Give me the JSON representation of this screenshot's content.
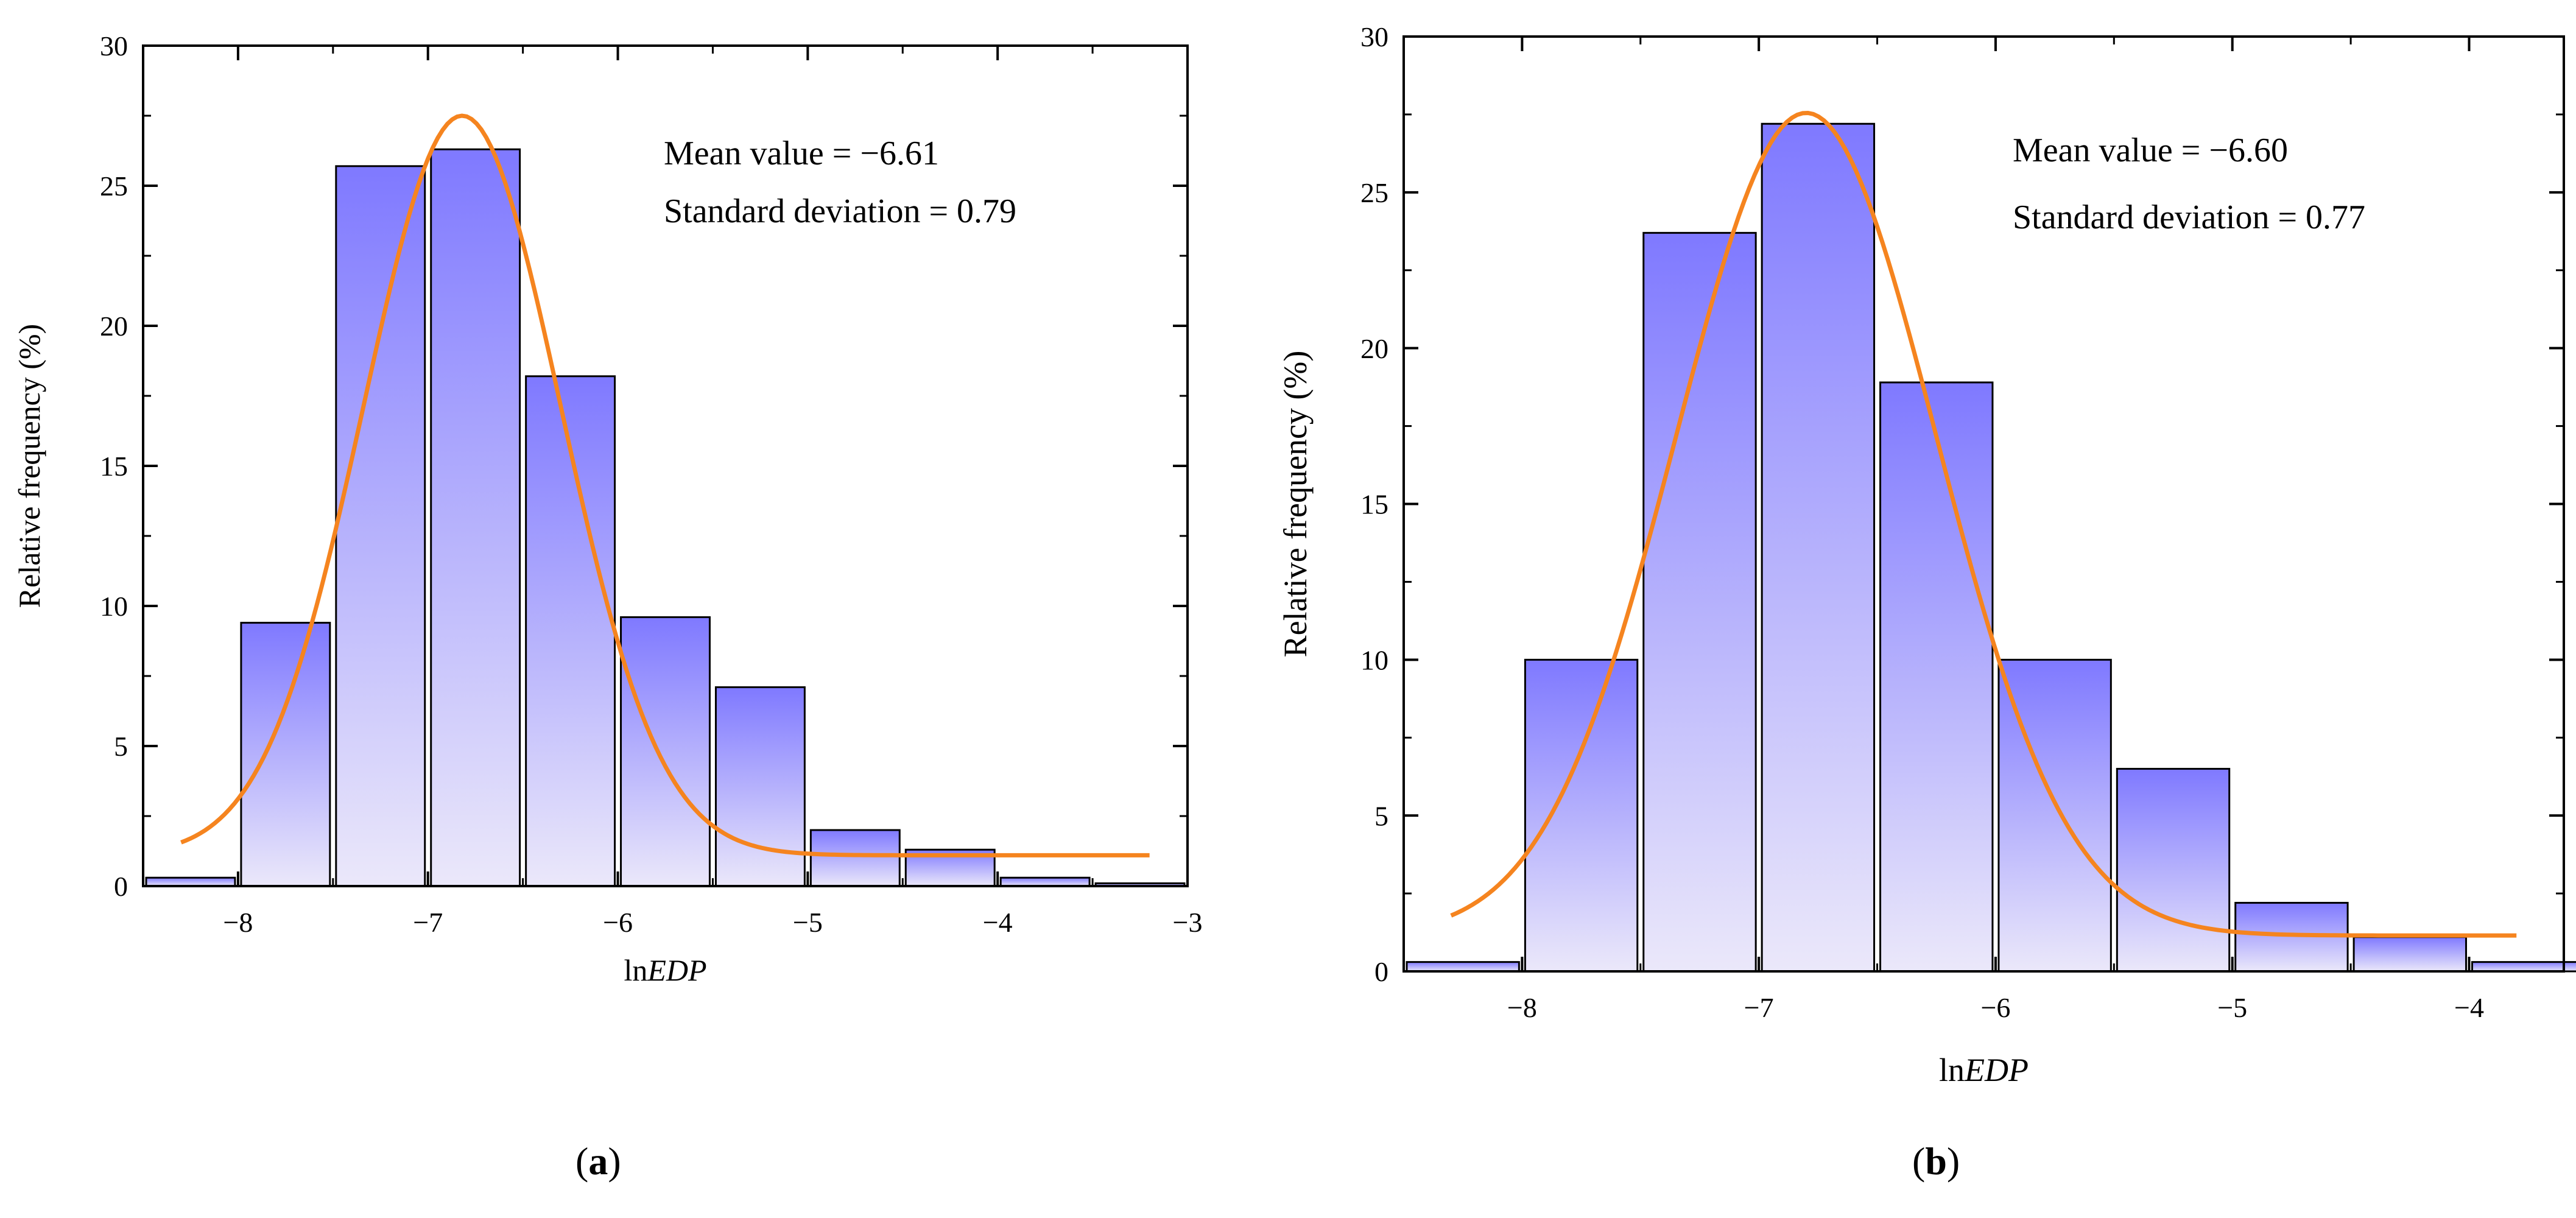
{
  "chart_data": [
    {
      "type": "bar",
      "panel_label": "a",
      "xlabel_prefix": "ln",
      "xlabel_italic": "EDP",
      "ylabel": "Relative frequency (%)",
      "xlim": [
        -8.5,
        -3.0
      ],
      "ylim": [
        0,
        30
      ],
      "xticks": [
        -8,
        -7,
        -6,
        -5,
        -4,
        -3
      ],
      "yticks": [
        0,
        5,
        10,
        15,
        20,
        25,
        30
      ],
      "bin_width": 0.5,
      "bins": [
        {
          "x0": -8.5,
          "value": 0.3
        },
        {
          "x0": -8.0,
          "value": 9.4
        },
        {
          "x0": -7.5,
          "value": 25.7
        },
        {
          "x0": -7.0,
          "value": 26.3
        },
        {
          "x0": -6.5,
          "value": 18.2
        },
        {
          "x0": -6.0,
          "value": 9.6
        },
        {
          "x0": -5.5,
          "value": 7.1
        },
        {
          "x0": -5.0,
          "value": 2.0
        },
        {
          "x0": -4.5,
          "value": 1.3
        },
        {
          "x0": -4.0,
          "value": 0.3
        },
        {
          "x0": -3.5,
          "value": 0.1
        }
      ],
      "fit": {
        "mu": -6.82,
        "sigma": 0.52,
        "amplitude": 26.4,
        "offset": 1.1,
        "x_start": -8.3,
        "x_end": -3.2
      },
      "annotations": [
        "Mean value = −6.61",
        "Standard deviation = 0.79"
      ],
      "colors": {
        "bar_top": "#7f79ff",
        "bar_bottom": "#ebe8fa",
        "fit": "#f5841f",
        "frame": "#000000"
      }
    },
    {
      "type": "bar",
      "panel_label": "b",
      "xlabel_prefix": "ln",
      "xlabel_italic": "EDP",
      "ylabel": "Relative frequency (%)",
      "xlim": [
        -8.5,
        -3.6
      ],
      "ylim": [
        0,
        30
      ],
      "xticks": [
        -8,
        -7,
        -6,
        -5,
        -4
      ],
      "yticks": [
        0,
        5,
        10,
        15,
        20,
        25,
        30
      ],
      "bin_width": 0.5,
      "bins": [
        {
          "x0": -8.5,
          "value": 0.3
        },
        {
          "x0": -8.0,
          "value": 10.0
        },
        {
          "x0": -7.5,
          "value": 23.7
        },
        {
          "x0": -7.0,
          "value": 27.2
        },
        {
          "x0": -6.5,
          "value": 18.9
        },
        {
          "x0": -6.0,
          "value": 10.0
        },
        {
          "x0": -5.5,
          "value": 6.5
        },
        {
          "x0": -5.0,
          "value": 2.2
        },
        {
          "x0": -4.5,
          "value": 1.1
        },
        {
          "x0": -4.0,
          "value": 0.3
        }
      ],
      "fit": {
        "mu": -6.8,
        "sigma": 0.55,
        "amplitude": 26.4,
        "offset": 1.15,
        "x_start": -8.3,
        "x_end": -3.8
      },
      "annotations": [
        "Mean value = −6.60",
        "Standard deviation = 0.77"
      ],
      "colors": {
        "bar_top": "#7f79ff",
        "bar_bottom": "#ebe8fa",
        "fit": "#f5841f",
        "frame": "#000000"
      }
    }
  ]
}
